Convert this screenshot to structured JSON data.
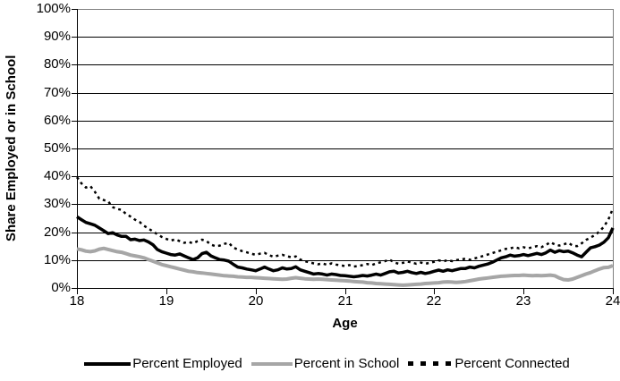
{
  "chart": {
    "y_axis_title": "Share Employed or in School",
    "x_axis_title": "Age",
    "y_tick_labels": [
      "100%",
      "90%",
      "80%",
      "70%",
      "60%",
      "50%",
      "40%",
      "30%",
      "20%",
      "10%",
      "0%"
    ],
    "x_tick_labels": [
      "18",
      "19",
      "20",
      "21",
      "22",
      "23",
      "24"
    ],
    "legend": [
      {
        "label": "Percent Employed"
      },
      {
        "label": "Percent in School"
      },
      {
        "label": "Percent Connected"
      }
    ],
    "colors": {
      "employed": "#000000",
      "school": "#a6a6a6",
      "connected": "#000000",
      "gridline": "#000000",
      "axis": "#000000",
      "plot_border": "#808080",
      "background": "#ffffff"
    }
  },
  "chart_data": {
    "type": "line",
    "title": "",
    "xlabel": "Age",
    "ylabel": "Share Employed or in School",
    "xlim": [
      18,
      24
    ],
    "ylim": [
      0,
      100
    ],
    "x_ticks": [
      18,
      19,
      20,
      21,
      22,
      23,
      24
    ],
    "y_ticks": [
      0,
      10,
      20,
      30,
      40,
      50,
      60,
      70,
      80,
      90,
      100
    ],
    "grid": "horizontal",
    "legend_position": "bottom",
    "units": "percent",
    "x": [
      18,
      18.05,
      18.1,
      18.15,
      18.2,
      18.25,
      18.3,
      18.35,
      18.4,
      18.45,
      18.5,
      18.55,
      18.6,
      18.65,
      18.7,
      18.75,
      18.8,
      18.85,
      18.9,
      18.95,
      19,
      19.05,
      19.1,
      19.15,
      19.2,
      19.25,
      19.3,
      19.35,
      19.4,
      19.45,
      19.5,
      19.55,
      19.6,
      19.65,
      19.7,
      19.75,
      19.8,
      19.85,
      19.9,
      19.95,
      20,
      20.05,
      20.1,
      20.15,
      20.2,
      20.25,
      20.3,
      20.35,
      20.4,
      20.45,
      20.5,
      20.55,
      20.6,
      20.65,
      20.7,
      20.75,
      20.8,
      20.85,
      20.9,
      20.95,
      21,
      21.05,
      21.1,
      21.15,
      21.2,
      21.25,
      21.3,
      21.35,
      21.4,
      21.45,
      21.5,
      21.55,
      21.6,
      21.65,
      21.7,
      21.75,
      21.8,
      21.85,
      21.9,
      21.95,
      22,
      22.05,
      22.1,
      22.15,
      22.2,
      22.25,
      22.3,
      22.35,
      22.4,
      22.45,
      22.5,
      22.55,
      22.6,
      22.65,
      22.7,
      22.75,
      22.8,
      22.85,
      22.9,
      22.95,
      23,
      23.05,
      23.1,
      23.15,
      23.2,
      23.25,
      23.3,
      23.35,
      23.4,
      23.45,
      23.5,
      23.55,
      23.6,
      23.65,
      23.7,
      23.75,
      23.8,
      23.85,
      23.9,
      23.95,
      24
    ],
    "series": [
      {
        "id": "percent-employed",
        "name": "Percent Employed",
        "color": "#000000",
        "line_style": "solid",
        "width": 3.5,
        "z": 2,
        "values": [
          25.5,
          24.5,
          23.5,
          23.0,
          22.5,
          21.5,
          20.5,
          19.5,
          19.8,
          19.0,
          18.5,
          18.5,
          17.3,
          17.5,
          17.0,
          17.2,
          16.5,
          15.5,
          13.8,
          13.0,
          12.5,
          12.0,
          11.8,
          12.2,
          11.5,
          10.8,
          10.2,
          10.8,
          12.3,
          12.8,
          11.5,
          10.8,
          10.2,
          10.0,
          9.6,
          8.5,
          7.5,
          7.2,
          6.8,
          6.5,
          6.2,
          6.8,
          7.5,
          6.8,
          6.2,
          6.5,
          7.2,
          6.8,
          7.0,
          7.6,
          6.5,
          6.0,
          5.5,
          5.0,
          5.2,
          5.0,
          4.6,
          5.0,
          4.8,
          4.5,
          4.4,
          4.2,
          4.0,
          4.2,
          4.5,
          4.3,
          4.6,
          5.0,
          4.6,
          5.2,
          5.8,
          6.0,
          5.4,
          5.6,
          6.0,
          5.5,
          5.2,
          5.6,
          5.2,
          5.5,
          6.0,
          6.4,
          6.0,
          6.5,
          6.2,
          6.6,
          7.0,
          7.0,
          7.5,
          7.2,
          7.8,
          8.2,
          8.6,
          9.2,
          10.0,
          10.8,
          11.2,
          11.8,
          11.4,
          11.6,
          12.0,
          11.6,
          12.0,
          12.4,
          12.0,
          12.6,
          13.6,
          12.8,
          13.4,
          13.0,
          13.2,
          12.6,
          11.8,
          11.2,
          12.8,
          14.4,
          14.8,
          15.4,
          16.4,
          18.0,
          21.5
        ]
      },
      {
        "id": "percent-in-school",
        "name": "Percent in School",
        "color": "#a6a6a6",
        "line_style": "solid",
        "width": 4,
        "z": 1,
        "values": [
          14.0,
          13.7,
          13.2,
          13.0,
          13.3,
          13.9,
          14.2,
          13.8,
          13.4,
          13.0,
          12.8,
          12.3,
          11.8,
          11.5,
          11.2,
          10.8,
          10.2,
          9.6,
          9.0,
          8.4,
          8.0,
          7.6,
          7.2,
          6.8,
          6.4,
          6.0,
          5.8,
          5.5,
          5.4,
          5.2,
          5.0,
          4.8,
          4.6,
          4.4,
          4.3,
          4.2,
          4.0,
          3.9,
          3.8,
          3.8,
          3.7,
          3.6,
          3.5,
          3.4,
          3.3,
          3.2,
          3.1,
          3.2,
          3.5,
          3.7,
          3.5,
          3.3,
          3.2,
          3.1,
          3.2,
          3.1,
          3.0,
          2.9,
          2.8,
          2.7,
          2.6,
          2.5,
          2.3,
          2.2,
          2.1,
          1.9,
          1.8,
          1.6,
          1.5,
          1.4,
          1.3,
          1.2,
          1.1,
          1.0,
          1.1,
          1.2,
          1.3,
          1.4,
          1.6,
          1.7,
          1.8,
          1.9,
          2.1,
          2.2,
          2.1,
          2.0,
          2.1,
          2.3,
          2.6,
          2.9,
          3.2,
          3.4,
          3.6,
          3.8,
          4.0,
          4.2,
          4.3,
          4.4,
          4.5,
          4.5,
          4.6,
          4.5,
          4.4,
          4.5,
          4.4,
          4.5,
          4.6,
          4.4,
          3.6,
          3.0,
          2.9,
          3.2,
          3.8,
          4.4,
          5.0,
          5.5,
          6.2,
          6.8,
          7.3,
          7.4,
          8.0
        ]
      },
      {
        "id": "percent-connected",
        "name": "Percent Connected",
        "color": "#000000",
        "line_style": "dashed",
        "width": 2.5,
        "dash": "3 4",
        "z": 3,
        "values": [
          39.7,
          37.5,
          36.0,
          36.5,
          34.5,
          32.0,
          31.5,
          31.0,
          29.0,
          28.3,
          28.0,
          26.5,
          25.6,
          24.5,
          23.7,
          22.3,
          21.3,
          20.3,
          19.3,
          18.3,
          17.6,
          17.0,
          17.4,
          16.8,
          16.2,
          16.5,
          16.0,
          16.8,
          17.3,
          16.8,
          15.5,
          15.0,
          15.2,
          15.8,
          16.2,
          14.5,
          13.8,
          13.2,
          12.8,
          12.3,
          11.9,
          12.3,
          12.6,
          11.8,
          11.2,
          11.6,
          11.9,
          11.4,
          11.0,
          11.3,
          10.2,
          9.6,
          9.2,
          8.8,
          8.5,
          8.8,
          8.3,
          8.8,
          8.4,
          8.1,
          7.9,
          8.2,
          7.7,
          7.9,
          8.2,
          8.6,
          8.2,
          8.8,
          9.2,
          9.6,
          10.2,
          9.2,
          8.7,
          9.0,
          9.5,
          9.1,
          8.7,
          9.1,
          8.7,
          9.0,
          9.4,
          9.9,
          9.5,
          10.0,
          9.6,
          10.0,
          10.2,
          10.5,
          10.1,
          10.6,
          11.0,
          11.5,
          12.0,
          12.5,
          13.0,
          13.5,
          14.0,
          14.2,
          14.6,
          14.2,
          14.6,
          14.2,
          14.6,
          15.0,
          14.6,
          15.4,
          16.4,
          15.6,
          15.2,
          15.6,
          16.2,
          15.2,
          15.0,
          16.0,
          17.2,
          18.0,
          19.0,
          20.2,
          22.0,
          24.5,
          28.5
        ]
      }
    ]
  }
}
